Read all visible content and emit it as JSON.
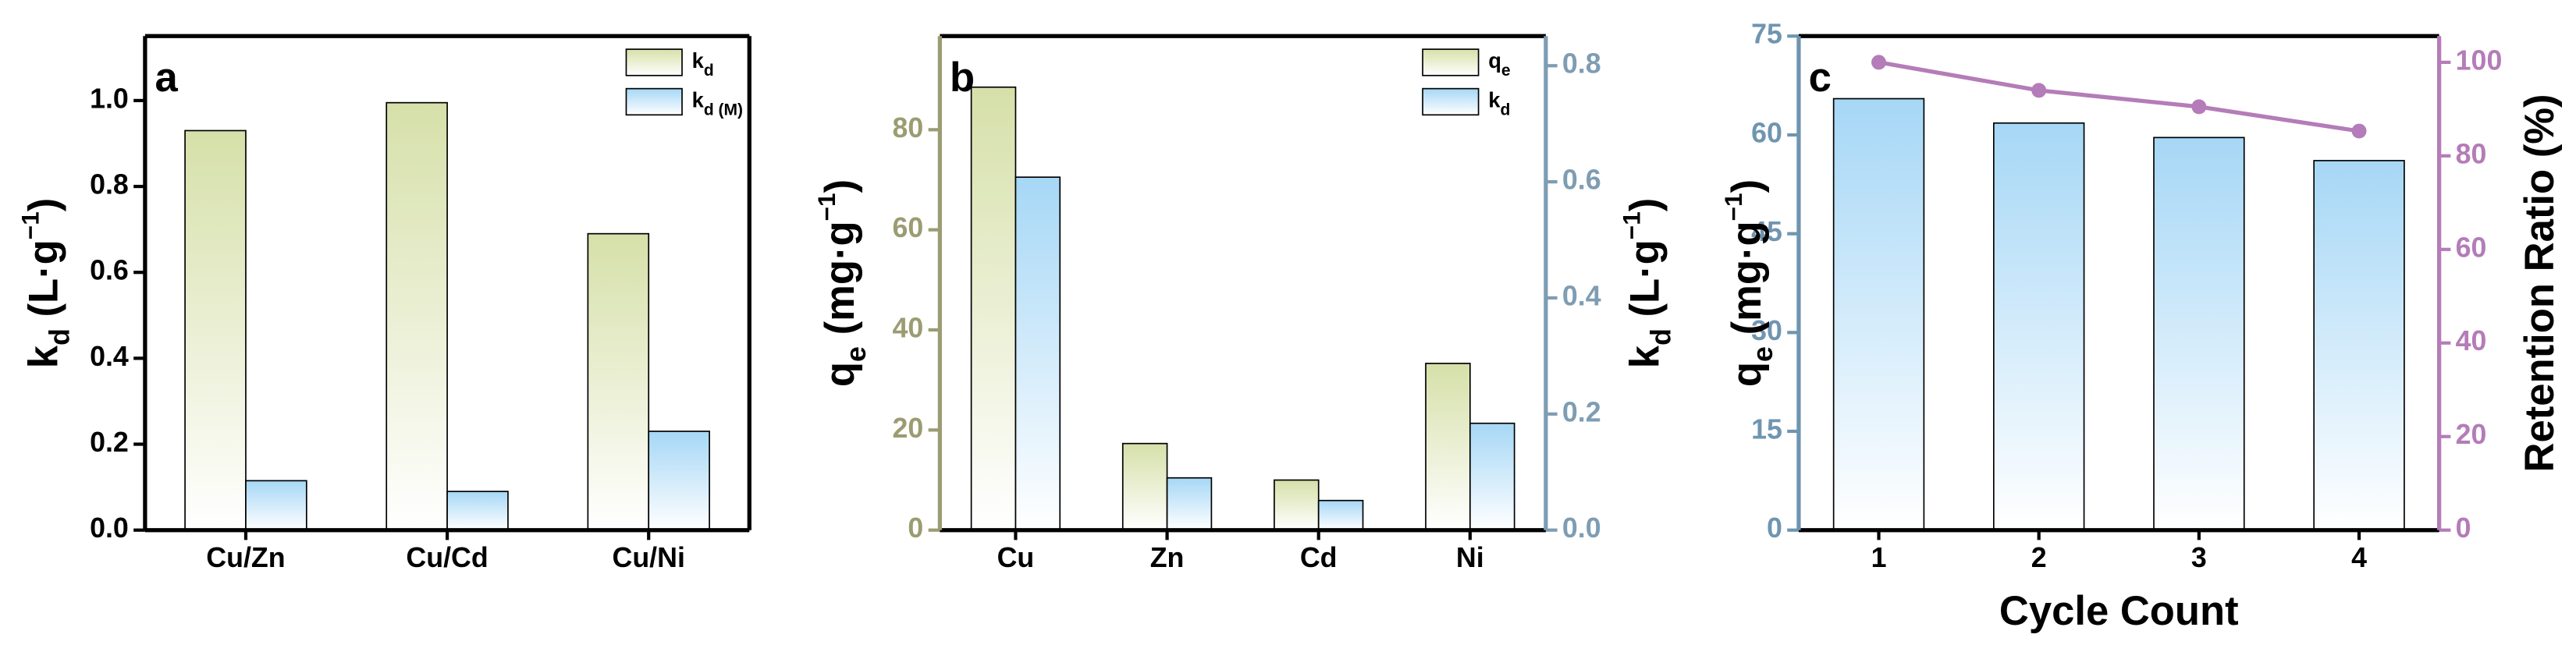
{
  "chart_data": [
    {
      "type": "bar",
      "annotation": "a",
      "categories": [
        "Cu/Zn",
        "Cu/Cd",
        "Cu/Ni"
      ],
      "series": [
        {
          "name": "kd",
          "color": "#d6e0a9",
          "values": [
            0.93,
            0.995,
            0.69
          ]
        },
        {
          "name": "kd (M)",
          "color": "#a6d7f6",
          "values": [
            0.115,
            0.09,
            0.23
          ]
        }
      ],
      "ylim": [
        0,
        1.15
      ],
      "yticks": [
        {
          "value": 0,
          "label": "0.0"
        },
        {
          "value": 0.2,
          "label": "0.2"
        },
        {
          "value": 0.4,
          "label": "0.4"
        },
        {
          "value": 0.6,
          "label": "0.6"
        },
        {
          "value": 0.8,
          "label": "0.8"
        },
        {
          "value": 1.0,
          "label": "1.0"
        }
      ],
      "ylabel": [
        {
          "text": "k"
        },
        {
          "sub": "d"
        },
        {
          "text": " (L·g"
        },
        {
          "sup": "−1"
        },
        {
          "text": ")"
        }
      ],
      "legend": "upper right"
    },
    {
      "type": "bar",
      "annotation": "b",
      "categories": [
        "Cu",
        "Zn",
        "Cd",
        "Ni"
      ],
      "series": [
        {
          "name": "qe",
          "color": "#d6e0a9",
          "values": [
            88.5,
            17.3,
            10,
            33.3
          ]
        },
        {
          "name": "kd",
          "color": "#a6d7f6",
          "axis": "y2",
          "values": [
            0.608,
            0.09,
            0.051,
            0.184
          ]
        }
      ],
      "ylim": [
        0,
        98.7
      ],
      "yticks": [
        0,
        20,
        40,
        60,
        80
      ],
      "ycolor": "#9b9c72",
      "y2lim": [
        0,
        0.851
      ],
      "y2ticks": [
        {
          "value": 0,
          "label": "0.0"
        },
        {
          "value": 0.2,
          "label": "0.2"
        },
        {
          "value": 0.4,
          "label": "0.4"
        },
        {
          "value": 0.6,
          "label": "0.6"
        },
        {
          "value": 0.8,
          "label": "0.8"
        }
      ],
      "y2color": "#7e9db3",
      "ylabel": [
        {
          "text": "q"
        },
        {
          "sub": "e"
        },
        {
          "text": " (mg·g"
        },
        {
          "sup": "−1"
        },
        {
          "text": ")"
        }
      ],
      "y2label": [
        {
          "text": "k"
        },
        {
          "sub": "d"
        },
        {
          "text": " (L·g"
        },
        {
          "sup": "−1"
        },
        {
          "text": ")"
        }
      ],
      "legend": "upper right"
    },
    {
      "type": "bar-line",
      "annotation": "c",
      "categories": [
        "1",
        "2",
        "3",
        "4"
      ],
      "series": [
        {
          "type": "bar",
          "color": "#a6d7f6",
          "values": [
            65.5,
            61.8,
            59.6,
            56.1
          ]
        },
        {
          "type": "line",
          "color": "#b47cb8",
          "axis": "y2",
          "values": [
            100,
            94,
            90.5,
            85.3
          ]
        }
      ],
      "ylim": [
        0,
        75
      ],
      "yticks": [
        0,
        15,
        30,
        45,
        60,
        75
      ],
      "ycolor": "#6f95b0",
      "y2lim": [
        0,
        105.6
      ],
      "y2ticks": [
        0,
        20,
        40,
        60,
        80,
        100
      ],
      "y2color": "#b47cb8",
      "ylabel": [
        {
          "text": "q"
        },
        {
          "sub": "e"
        },
        {
          "text": " (mg·g"
        },
        {
          "sup": "−1"
        },
        {
          "text": ")"
        }
      ],
      "y2label": [
        {
          "text": "Retention Ratio (%)"
        }
      ],
      "xlabel": "Cycle Count"
    }
  ]
}
